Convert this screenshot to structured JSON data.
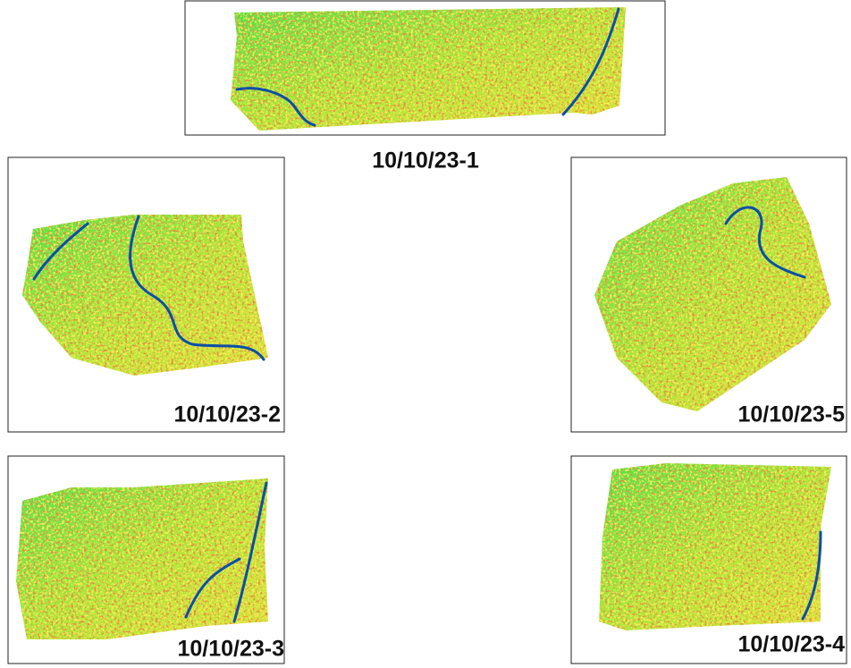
{
  "panels": [
    {
      "label": "10/10/23-1"
    },
    {
      "label": "10/10/23-2"
    },
    {
      "label": "10/10/23-5"
    },
    {
      "label": "10/10/23-3"
    },
    {
      "label": "10/10/23-4"
    }
  ]
}
